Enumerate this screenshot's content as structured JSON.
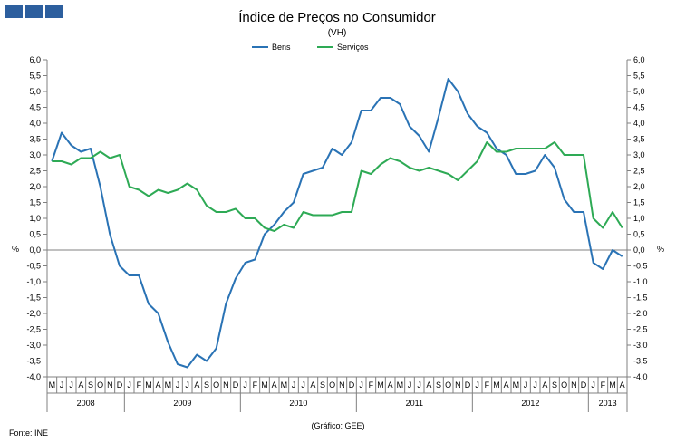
{
  "chart_data": {
    "type": "line",
    "title": "Índice de Preços no Consumidor",
    "subtitle": "(VH)",
    "ylabel_left": "%",
    "ylabel_right": "%",
    "ylim": [
      -4.0,
      6.0
    ],
    "ytick_step": 0.5,
    "grid": false,
    "legend_position": "top-center",
    "month_labels": [
      "M",
      "J",
      "J",
      "A",
      "S",
      "O",
      "N",
      "D",
      "J",
      "F",
      "M",
      "A",
      "M",
      "J",
      "J",
      "A",
      "S",
      "O",
      "N",
      "D",
      "J",
      "F",
      "M",
      "A",
      "M",
      "J",
      "J",
      "A",
      "S",
      "O",
      "N",
      "D",
      "J",
      "F",
      "M",
      "A",
      "M",
      "J",
      "J",
      "A",
      "S",
      "O",
      "N",
      "D",
      "J",
      "F",
      "M",
      "A",
      "M",
      "J",
      "J",
      "A",
      "S",
      "O",
      "N",
      "D",
      "J",
      "F",
      "M",
      "A"
    ],
    "years": [
      {
        "label": "2008",
        "start": 0,
        "count": 8
      },
      {
        "label": "2009",
        "start": 8,
        "count": 12
      },
      {
        "label": "2010",
        "start": 20,
        "count": 12
      },
      {
        "label": "2011",
        "start": 32,
        "count": 12
      },
      {
        "label": "2012",
        "start": 44,
        "count": 12
      },
      {
        "label": "2013",
        "start": 56,
        "count": 4
      }
    ],
    "series": [
      {
        "name": "Bens",
        "color": "#2a73b5",
        "values": [
          2.8,
          3.7,
          3.3,
          3.1,
          3.2,
          2.0,
          0.5,
          -0.5,
          -0.8,
          -0.8,
          -1.7,
          -2.0,
          -2.9,
          -3.6,
          -3.7,
          -3.3,
          -3.5,
          -3.1,
          -1.7,
          -0.9,
          -0.4,
          -0.3,
          0.5,
          0.8,
          1.2,
          1.5,
          2.4,
          2.5,
          2.6,
          3.2,
          3.0,
          3.4,
          4.4,
          4.4,
          4.8,
          4.8,
          4.6,
          3.9,
          3.6,
          3.1,
          4.2,
          5.4,
          5.0,
          4.3,
          3.9,
          3.7,
          3.2,
          3.0,
          2.4,
          2.4,
          2.5,
          3.0,
          2.6,
          1.6,
          1.2,
          1.2,
          -0.4,
          -0.6,
          0.0,
          -0.2
        ]
      },
      {
        "name": "Serviços",
        "color": "#2eaa55",
        "values": [
          2.8,
          2.8,
          2.7,
          2.9,
          2.9,
          3.1,
          2.9,
          3.0,
          2.0,
          1.9,
          1.7,
          1.9,
          1.8,
          1.9,
          2.1,
          1.9,
          1.4,
          1.2,
          1.2,
          1.3,
          1.0,
          1.0,
          0.7,
          0.6,
          0.8,
          0.7,
          1.2,
          1.1,
          1.1,
          1.1,
          1.2,
          1.2,
          2.5,
          2.4,
          2.7,
          2.9,
          2.8,
          2.6,
          2.5,
          2.6,
          2.5,
          2.4,
          2.2,
          2.5,
          2.8,
          3.4,
          3.1,
          3.1,
          3.2,
          3.2,
          3.2,
          3.2,
          3.4,
          3.0,
          3.0,
          3.0,
          1.0,
          0.7,
          1.2,
          0.7
        ]
      }
    ]
  },
  "footer": {
    "source": "Fonte: INE",
    "credit": "(Gráfico: GEE)"
  }
}
